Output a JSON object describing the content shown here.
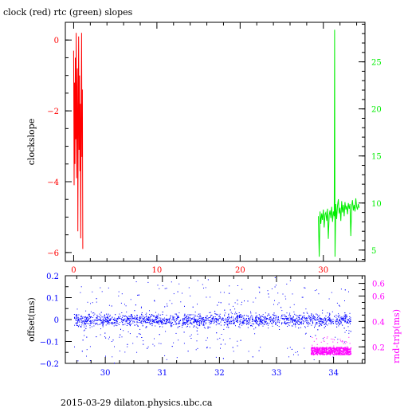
{
  "footer": {
    "text": "2015-03-29 dilaton.physics.ubc.ca"
  },
  "colors": {
    "clock": "#ff0000",
    "rtc": "#00ee00",
    "offset": "#0000ff",
    "roundtrip": "#ff00ff",
    "axes": "#000000"
  },
  "chart_data": [
    {
      "type": "line",
      "title": "clock (red) rtc (green) slopes",
      "xlabel": "",
      "ylabel": "clockslope",
      "xlim": [
        -1,
        35
      ],
      "ylim": [
        -6.25,
        0.5
      ],
      "y2lim": [
        3.8,
        29.2
      ],
      "xticks": [
        "0",
        "10",
        "20",
        "30"
      ],
      "yticks": [
        "0",
        "−2",
        "−4",
        "−6"
      ],
      "y2ticks": [
        "5",
        "10",
        "15",
        "20",
        "25"
      ],
      "series": [
        {
          "name": "clock",
          "axis": "left",
          "color": "#ff0000",
          "x": [
            0.0,
            0.05,
            0.1,
            0.15,
            0.2,
            0.25,
            0.3,
            0.35,
            0.4,
            0.45,
            0.5,
            0.55,
            0.6,
            0.65,
            0.7,
            0.75,
            0.8,
            0.85,
            0.9,
            0.95,
            1.0,
            1.05,
            1.1
          ],
          "y": [
            -0.3,
            -4.1,
            -1.2,
            -3.5,
            -0.5,
            -2.8,
            0.2,
            -3.9,
            -1.6,
            -0.8,
            -5.4,
            -2.2,
            0.1,
            -3.1,
            -1.0,
            -3.7,
            -1.8,
            -5.6,
            -2.5,
            0.2,
            -3.3,
            -1.4,
            -5.9
          ]
        },
        {
          "name": "rtc",
          "axis": "right",
          "color": "#00ee00",
          "x": [
            29.4,
            29.5,
            29.6,
            29.7,
            29.8,
            29.9,
            30.0,
            30.1,
            30.2,
            30.3,
            30.4,
            30.5,
            30.6,
            30.7,
            30.8,
            30.9,
            31.0,
            31.1,
            31.2,
            31.3,
            31.35,
            31.4,
            31.5,
            31.6,
            31.7,
            31.8,
            31.9,
            32.0,
            32.1,
            32.2,
            32.3,
            32.4,
            32.5,
            32.6,
            32.7,
            32.8,
            32.9,
            33.0,
            33.1,
            33.2,
            33.3,
            33.4,
            33.5,
            33.6,
            33.7,
            33.8,
            33.9,
            34.0,
            34.1,
            34.2,
            34.3
          ],
          "y": [
            8.6,
            4.3,
            9.1,
            7.8,
            8.9,
            8.2,
            9.3,
            7.4,
            8.8,
            9.0,
            8.1,
            9.4,
            6.2,
            8.7,
            9.2,
            8.4,
            9.6,
            8.0,
            9.1,
            8.6,
            28.4,
            4.3,
            9.9,
            8.3,
            9.7,
            10.4,
            8.9,
            9.5,
            8.1,
            10.2,
            9.0,
            9.8,
            8.6,
            10.1,
            9.3,
            9.7,
            8.8,
            10.0,
            9.4,
            9.9,
            6.5,
            9.6,
            10.3,
            9.2,
            9.8,
            9.1,
            10.5,
            9.6,
            9.3,
            9.9,
            9.5
          ]
        }
      ]
    },
    {
      "type": "scatter",
      "title": "",
      "xlabel": "",
      "ylabel": "offset(ms)",
      "y2label": "rnd-trip(ms)",
      "xlim": [
        29.3,
        34.55
      ],
      "ylim": [
        -0.2,
        0.2
      ],
      "y2lim": [
        0.07,
        0.76
      ],
      "xticks": [
        "30",
        "31",
        "32",
        "33",
        "34"
      ],
      "yticks": [
        "0.2",
        "0.1",
        "0",
        "−0.1",
        "−0.2"
      ],
      "y2ticks": [
        "0.2",
        "0.4",
        "0.6",
        "0.6"
      ],
      "series": [
        {
          "name": "offset",
          "axis": "left",
          "color": "#0000ff",
          "x_range": [
            29.45,
            34.3
          ],
          "center": 0.0,
          "core_spread": 0.02,
          "outlier_spread": 0.12
        },
        {
          "name": "rnd-trip",
          "axis": "right",
          "color": "#ff00ff",
          "x_range": [
            33.6,
            34.3
          ],
          "center": 0.17,
          "core_spread": 0.03
        }
      ]
    }
  ]
}
